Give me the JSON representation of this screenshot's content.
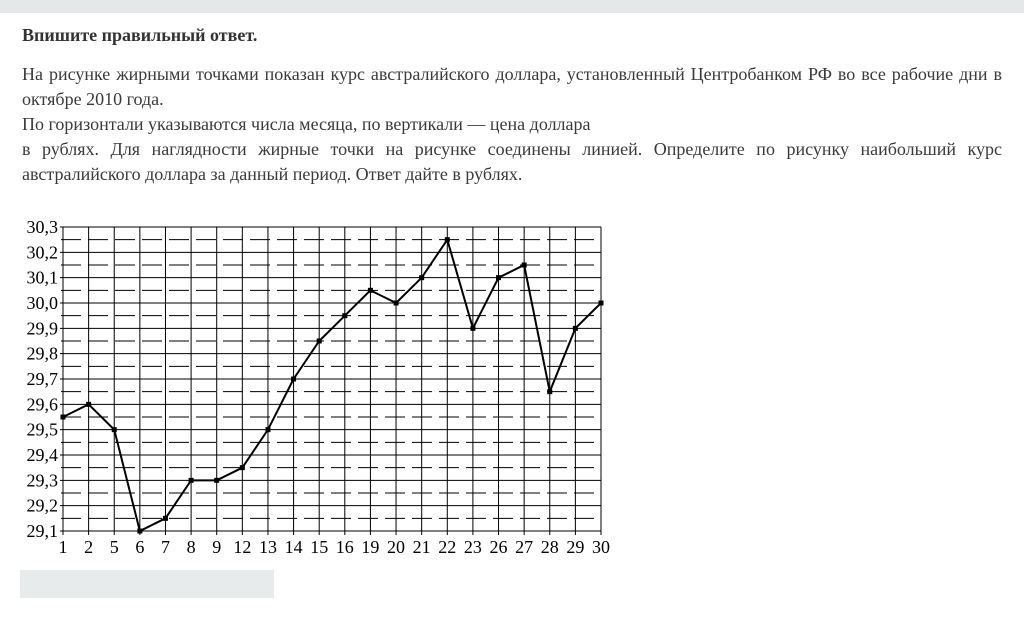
{
  "colors": {
    "top_strip": "#e5e8e8",
    "answer_box_bg": "#e8ebeb",
    "text": "#333333",
    "chart_ink": "#000000"
  },
  "header": {
    "title": "Впишите правильный ответ."
  },
  "problem": {
    "lines": [
      "На рисунке жирными точками показан курс австралийского доллара, установленный Центробанком РФ во все рабочие дни в",
      "октябре 2010 года.",
      "По горизонтали указываются числа месяца, по вертикали — цена доллара",
      "в рублях. Для наглядности жирные точки на рисунке соединены линией. Определите по рисунку наибольший курс",
      "австралийского доллара за данный период. Ответ дайте в рублях."
    ]
  },
  "answer_input": {
    "value": "",
    "placeholder": ""
  },
  "chart_data": {
    "type": "line",
    "title": "",
    "xlabel": "",
    "ylabel": "",
    "categories": [
      "1",
      "2",
      "5",
      "6",
      "7",
      "8",
      "9",
      "12",
      "13",
      "14",
      "15",
      "16",
      "19",
      "20",
      "21",
      "22",
      "23",
      "26",
      "27",
      "28",
      "29",
      "30"
    ],
    "values": [
      29.55,
      29.6,
      29.5,
      29.1,
      29.15,
      29.3,
      29.3,
      29.35,
      29.5,
      29.7,
      29.85,
      29.95,
      30.05,
      30.0,
      30.1,
      30.25,
      29.9,
      30.1,
      30.15,
      29.65,
      29.9,
      30.0
    ],
    "ylim": [
      29.1,
      30.3
    ],
    "y_major_step": 0.1,
    "y_minor_step": 0.05,
    "y_tick_labels_top_to_bottom": [
      "30,3",
      "30,2",
      "30,1",
      "30,0",
      "29,9",
      "29,8",
      "29,7",
      "29,6",
      "29,5",
      "29,4",
      "29,3",
      "29,2",
      "29,1"
    ],
    "grid": true,
    "minor_grid_style": "dashed",
    "legend_position": "none",
    "line_color": "#000000",
    "marker": "square"
  }
}
